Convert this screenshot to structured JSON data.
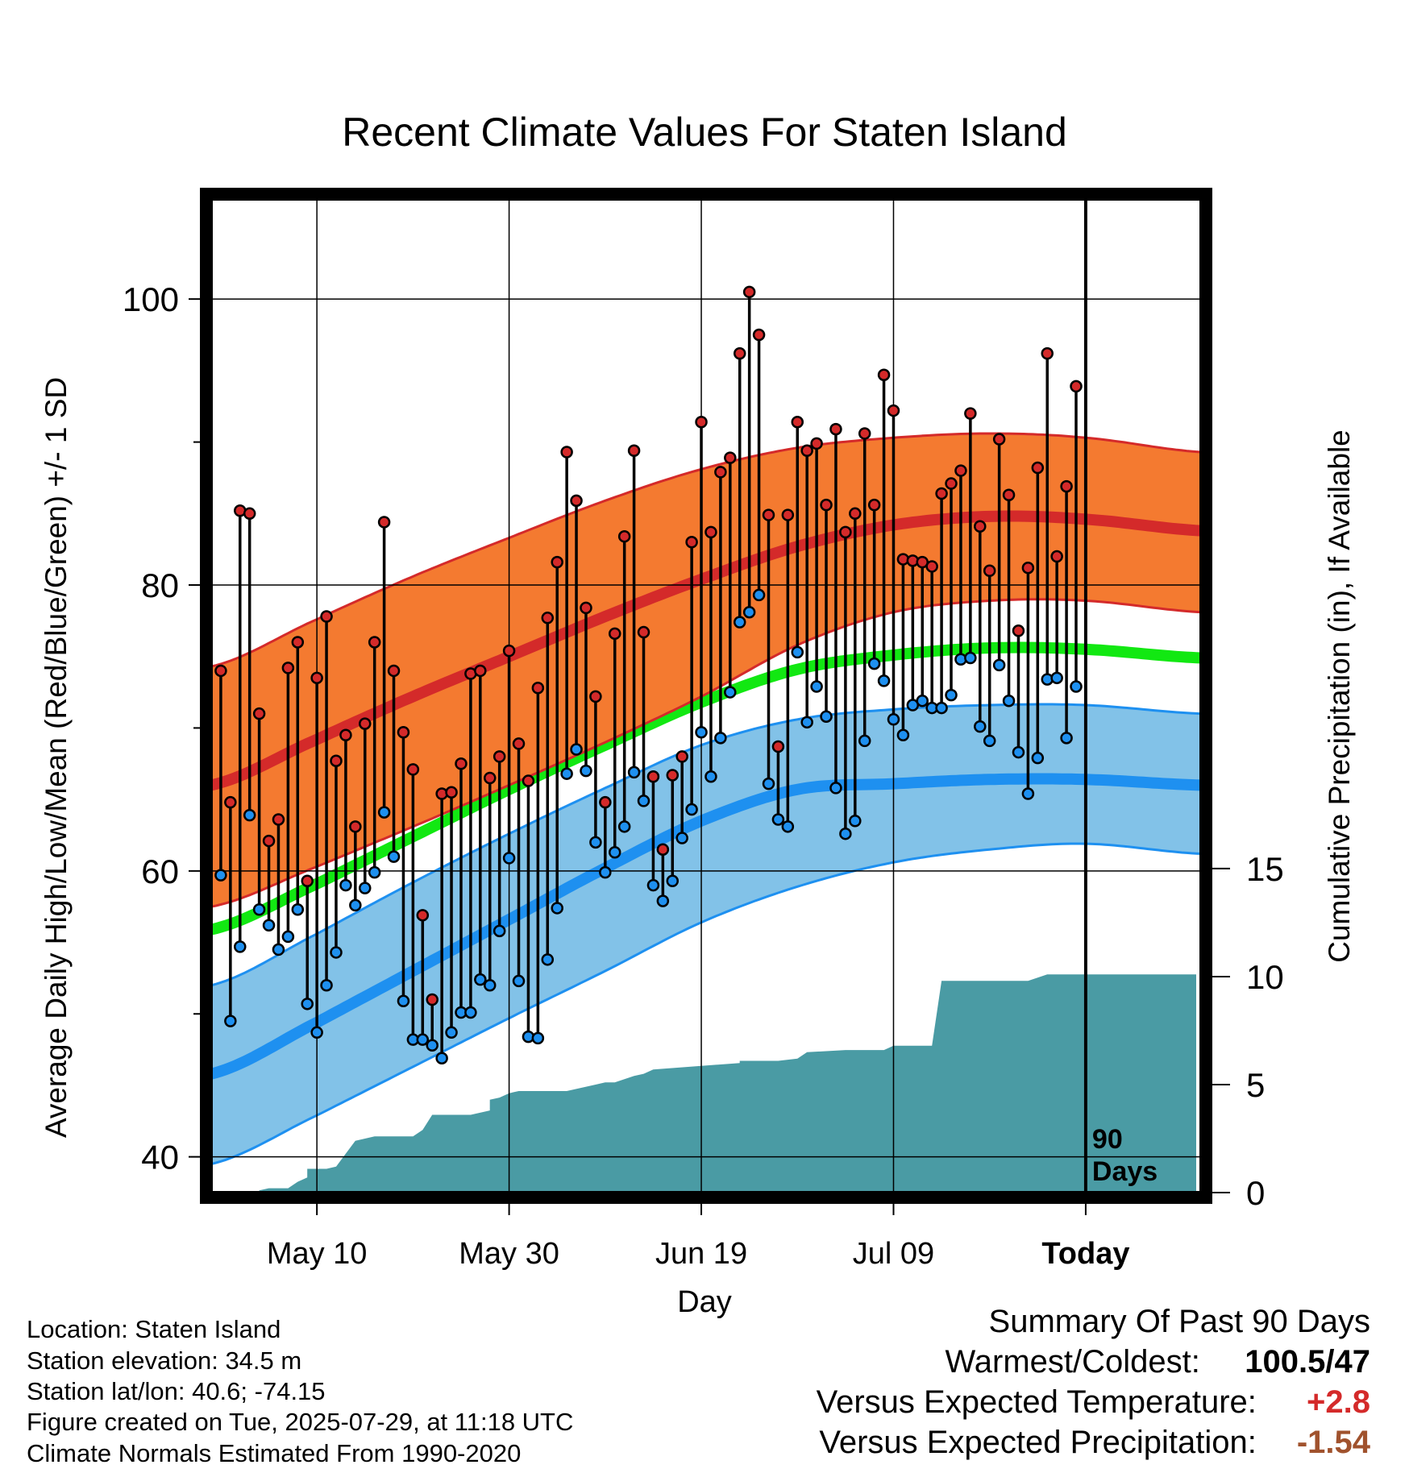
{
  "chart_data": {
    "type": "line",
    "title": "Recent Climate Values For Staten Island",
    "xlabel": "Day",
    "ylabel": "Average Daily High/Low/Mean (Red/Blue/Green) +/- 1 SD",
    "y2label": "Cumulative Precipitation (in), If Available",
    "xlim": [
      -11,
      92
    ],
    "ylim": [
      37.5,
      107
    ],
    "y2lim": [
      0,
      46
    ],
    "x_ticks": [
      {
        "x": 0,
        "label": "May 10"
      },
      {
        "x": 20,
        "label": "May 30"
      },
      {
        "x": 40,
        "label": "Jun 19"
      },
      {
        "x": 60,
        "label": "Jul 09"
      },
      {
        "x": 80,
        "label": "Today"
      }
    ],
    "y_ticks": [
      40,
      60,
      80,
      100
    ],
    "y_minor_ticks": [
      50,
      70,
      90
    ],
    "y2_ticks": [
      0,
      5,
      10,
      15
    ],
    "grid": true,
    "today_marker": {
      "x": 80,
      "label_line1": "90",
      "label_line2": "Days"
    },
    "colors": {
      "high_band": "#f47a30",
      "high_mean": "#d42a2a",
      "high_edge": "#d42a2a",
      "low_band": "#82c2e8",
      "low_mean": "#1e90f0",
      "low_edge": "#1e90f0",
      "mean_line": "#12e812",
      "precip": "#4a9ba4",
      "high_point": "#d42a2a",
      "low_point": "#1e90f0"
    },
    "normals": {
      "x": [
        -11,
        0,
        10,
        20,
        30,
        40,
        50,
        60,
        70,
        80,
        92
      ],
      "high_mean": [
        66,
        69.2,
        72.2,
        75,
        77.8,
        80.4,
        82.7,
        84.2,
        84.8,
        84.6,
        83.8
      ],
      "high_sd_low": [
        57.5,
        60.3,
        63.1,
        66,
        69,
        72.2,
        75.8,
        78.1,
        78.9,
        78.9,
        78.1
      ],
      "high_sd_high": [
        74.3,
        77.6,
        80.6,
        83.3,
        85.9,
        88.1,
        89.6,
        90.3,
        90.6,
        90.3,
        89.3
      ],
      "low_mean": [
        45.8,
        49.4,
        53,
        56.6,
        60.2,
        63.5,
        65.7,
        66.1,
        66.4,
        66.4,
        66
      ],
      "low_sd_low": [
        39.5,
        42.9,
        46.3,
        49.7,
        53,
        56.4,
        58.9,
        60.6,
        61.5,
        61.9,
        61.2
      ],
      "low_sd_high": [
        52,
        55.6,
        59.2,
        62.6,
        65.8,
        68.8,
        70.6,
        71.3,
        71.6,
        71.6,
        71
      ],
      "daily_mean": [
        55.9,
        59.1,
        62.4,
        65.7,
        68.8,
        71.8,
        74.1,
        75.1,
        75.6,
        75.5,
        74.9
      ]
    },
    "series": [
      {
        "name": "High",
        "values": [
          74,
          64.8,
          85.2,
          85,
          71,
          62.1,
          63.6,
          74.2,
          76,
          59.3,
          73.5,
          77.8,
          67.7,
          69.5,
          63.1,
          70.3,
          76,
          84.4,
          74,
          69.7,
          67.1,
          56.9,
          51,
          65.4,
          65.5,
          67.5,
          73.8,
          74,
          66.5,
          68,
          75.4,
          68.9,
          66.3,
          72.8,
          77.7,
          81.6,
          89.3,
          85.9,
          78.4,
          72.2,
          64.8,
          76.6,
          83.4,
          89.4,
          76.7,
          66.6,
          61.5,
          66.7,
          68,
          83,
          91.4,
          83.7,
          87.9,
          88.9,
          96.2,
          100.5,
          97.5,
          84.9,
          68.7,
          84.9,
          91.4,
          89.4,
          89.9,
          85.6,
          90.9,
          83.7,
          85,
          90.6,
          85.6,
          94.7,
          92.2,
          81.8,
          81.7,
          81.6,
          81.3,
          86.4,
          87.1,
          88,
          92,
          84.1,
          81,
          90.2,
          86.3,
          76.8,
          81.2,
          88.2,
          96.2,
          82,
          86.9,
          93.9
        ]
      },
      {
        "name": "Low",
        "values": [
          59.7,
          49.5,
          54.7,
          63.9,
          57.3,
          56.2,
          54.5,
          55.4,
          57.3,
          50.7,
          48.7,
          52,
          54.3,
          59,
          57.6,
          58.8,
          59.9,
          64.1,
          61,
          50.9,
          48.2,
          48.2,
          47.8,
          46.9,
          48.7,
          50.1,
          50.1,
          52.4,
          52,
          55.8,
          60.9,
          52.3,
          48.4,
          48.3,
          53.8,
          57.4,
          66.8,
          68.5,
          67,
          62,
          59.9,
          61.3,
          63.1,
          66.9,
          64.9,
          59,
          57.9,
          59.3,
          62.3,
          64.3,
          69.7,
          66.6,
          69.3,
          72.5,
          77.4,
          78.1,
          79.3,
          66.1,
          63.6,
          63.1,
          75.3,
          70.4,
          72.9,
          70.8,
          65.8,
          62.6,
          63.5,
          69.1,
          74.5,
          73.3,
          70.6,
          69.5,
          71.6,
          71.9,
          71.4,
          71.4,
          72.3,
          74.8,
          74.9,
          70.1,
          69.1,
          74.4,
          71.9,
          68.3,
          65.4,
          67.9,
          73.4,
          73.5,
          69.3,
          72.9
        ]
      },
      {
        "name": "Precipitation",
        "x": [
          -11,
          -6,
          -6,
          -5,
          -3,
          -2,
          -1,
          -1,
          1,
          2,
          3,
          4,
          5,
          6,
          7,
          10,
          11,
          12,
          13,
          14,
          16,
          18,
          18,
          19,
          20,
          21,
          26,
          29,
          30,
          31,
          33,
          34,
          35,
          44,
          44,
          48,
          50,
          51,
          55,
          59,
          60,
          64,
          65,
          73,
          74,
          76,
          78
        ],
        "values": [
          0,
          0,
          0.1,
          0.2,
          0.2,
          0.5,
          0.7,
          1.1,
          1.1,
          1.2,
          1.8,
          2.4,
          2.5,
          2.6,
          2.6,
          2.6,
          2.9,
          3.6,
          3.6,
          3.6,
          3.6,
          3.8,
          4.3,
          4.4,
          4.6,
          4.7,
          4.7,
          5.0,
          5.1,
          5.1,
          5.4,
          5.5,
          5.7,
          6.0,
          6.1,
          6.1,
          6.2,
          6.5,
          6.6,
          6.6,
          6.8,
          6.8,
          9.8,
          9.8,
          9.8,
          10.1,
          10.1
        ]
      }
    ]
  },
  "info": {
    "location": "Location: Staten Island",
    "elevation": "Station elevation: 34.5 m",
    "latlon": "Station lat/lon: 40.6; -74.15",
    "created": "Figure created on Tue, 2025-07-29, at 11:18 UTC",
    "normals": "Climate Normals Estimated From 1990-2020"
  },
  "summary": {
    "heading": "Summary Of Past 90 Days",
    "warmest_coldest_label": "Warmest/Coldest:",
    "warmest_coldest_value": "100.5/47",
    "temp_label": "Versus Expected Temperature:",
    "temp_value": "+2.8",
    "temp_color": "#d42a2a",
    "precip_label": "Versus Expected Precipitation:",
    "precip_value": "-1.54",
    "precip_color": "#a0522d"
  }
}
